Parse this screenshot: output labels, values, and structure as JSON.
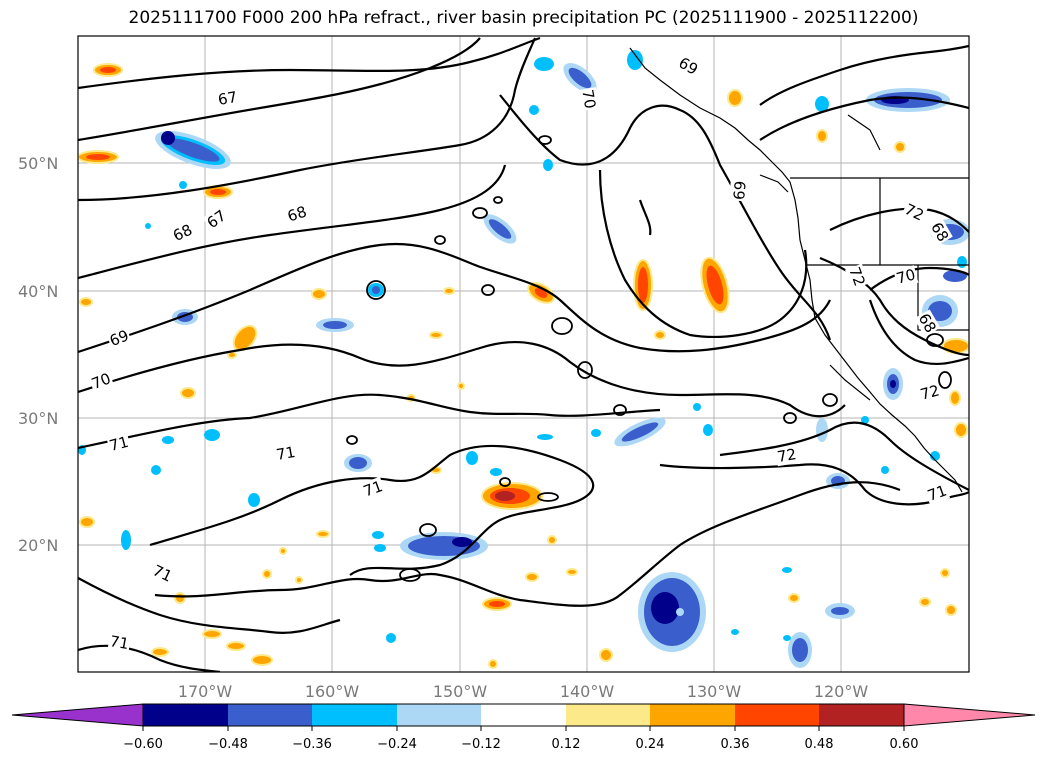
{
  "title": "2025111700 F000 200 hPa refract., river basin precipitation PC (2025111900 - 2025112200)",
  "map": {
    "lat_labels": [
      "50°N",
      "40°N",
      "30°N",
      "20°N"
    ],
    "lon_labels": [
      "170°W",
      "160°W",
      "150°W",
      "140°W",
      "130°W",
      "120°W"
    ],
    "contour_labels": [
      "67",
      "68",
      "68",
      "67",
      "69",
      "70",
      "71",
      "71",
      "71",
      "71",
      "71",
      "69",
      "70",
      "69",
      "72",
      "72",
      "70",
      "72",
      "71",
      "72",
      "68",
      "68"
    ]
  },
  "colorbar": {
    "ticks": [
      "−0.60",
      "−0.48",
      "−0.36",
      "−0.24",
      "−0.12",
      "0.12",
      "0.24",
      "0.36",
      "0.48",
      "0.60"
    ],
    "colors": [
      "#9932cc",
      "#00008b",
      "#3a5fcd",
      "#00bfff",
      "#add8f5",
      "#ffffff",
      "#fce98a",
      "#ffa500",
      "#ff4500",
      "#b22222",
      "#ff88aa"
    ]
  }
}
